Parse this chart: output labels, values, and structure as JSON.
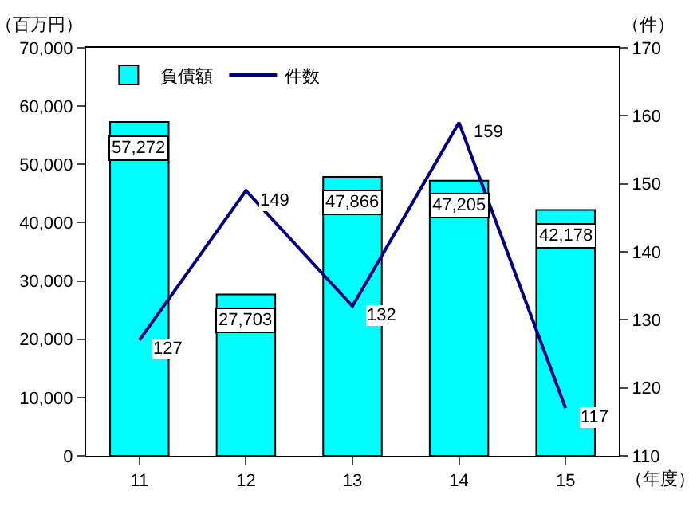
{
  "chart_data": {
    "type": "bar",
    "categories": [
      "11",
      "12",
      "13",
      "14",
      "15"
    ],
    "series": [
      {
        "name": "負債額",
        "color": "#00ffff",
        "values": [
          57272,
          27703,
          47866,
          47205,
          42178
        ],
        "value_labels": [
          "57,272",
          "27,703",
          "47,866",
          "47,205",
          "42,178"
        ]
      },
      {
        "name": "件数",
        "type": "line",
        "axis": "y2",
        "color": "#000080",
        "values": [
          127,
          149,
          132,
          159,
          117
        ],
        "value_labels": [
          "127",
          "149",
          "132",
          "159",
          "117"
        ]
      }
    ],
    "ylabel": "（百万円）",
    "y2label": "（件）",
    "xlabel": "（年度）",
    "ylim": [
      0,
      70000
    ],
    "yticks": [
      0,
      {
        "value": 10000,
        "label": "10,000"
      },
      {
        "value": 20000,
        "label": "20,000"
      },
      {
        "value": 30000,
        "label": "30,000"
      },
      {
        "value": 40000,
        "label": "40,000"
      },
      {
        "value": 50000,
        "label": "50,000"
      },
      {
        "value": 60000,
        "label": "60,000"
      },
      {
        "value": 70000,
        "label": "70,000"
      }
    ],
    "y2lim": [
      110,
      170
    ],
    "y2ticks": [
      110,
      120,
      130,
      140,
      150,
      160,
      170
    ],
    "legend": "top left",
    "marker": "none",
    "line_style": "solid"
  }
}
